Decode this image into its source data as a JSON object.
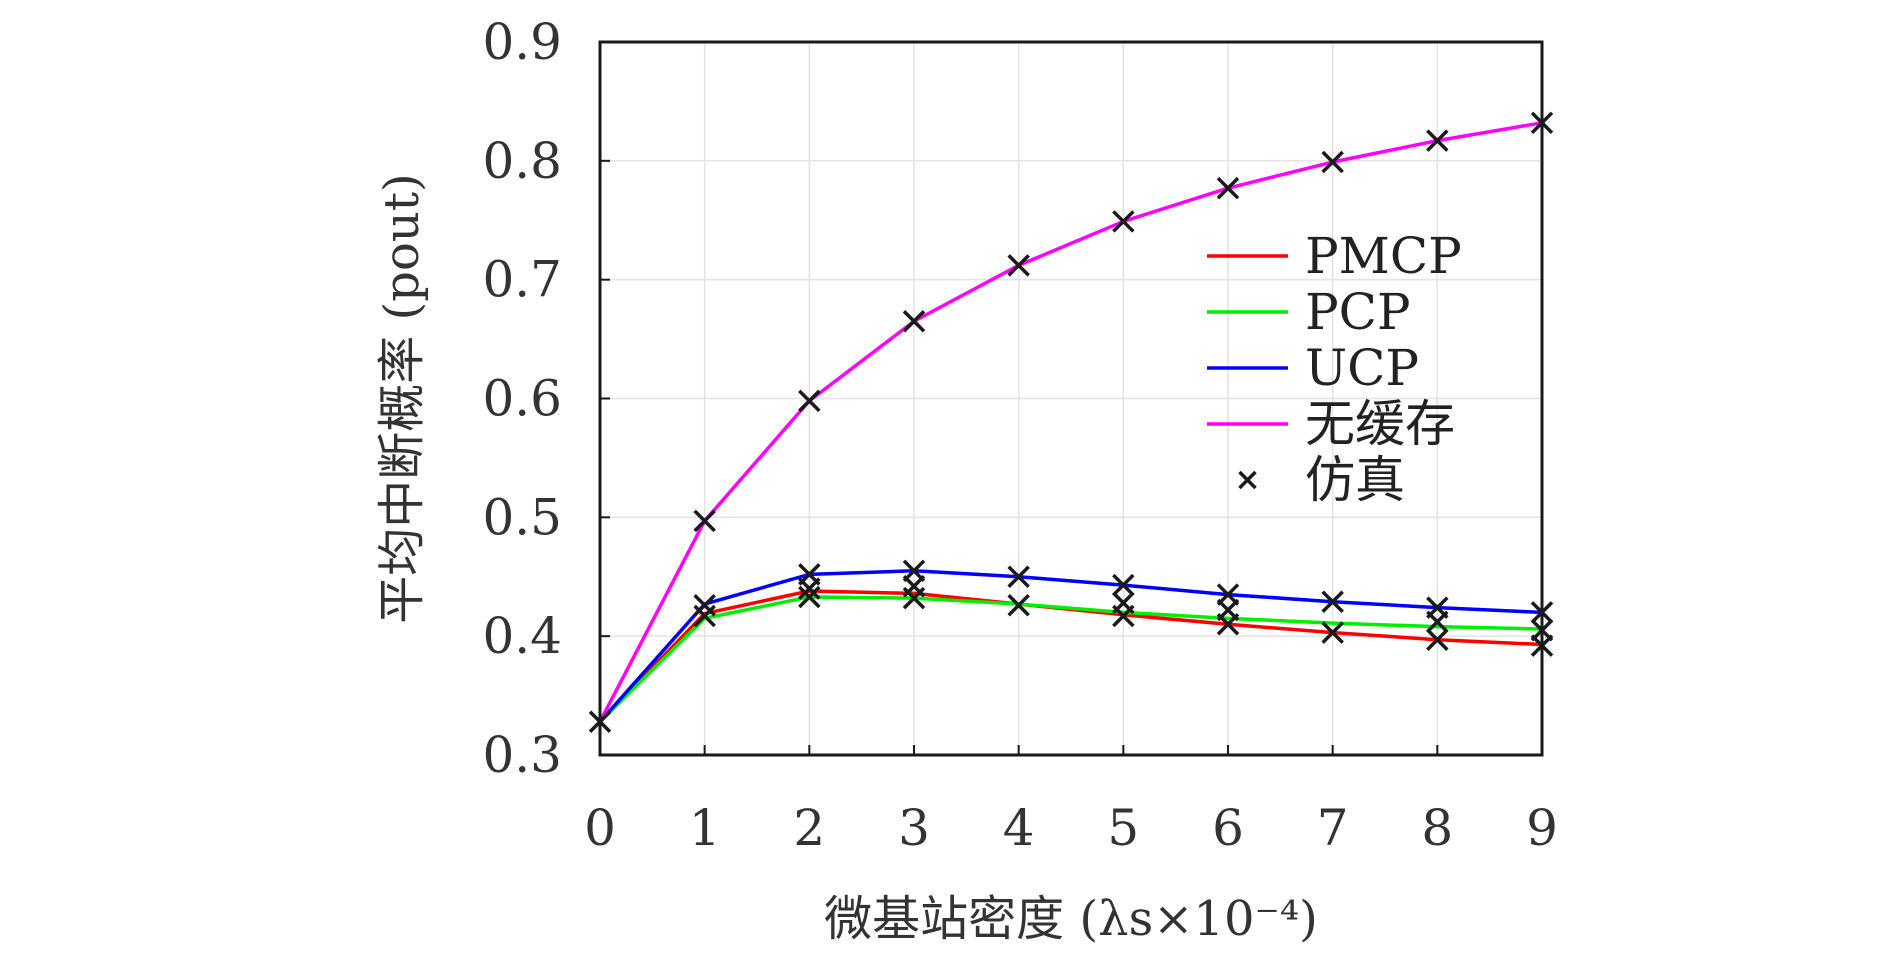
{
  "chart_data": {
    "type": "line",
    "xlabel": "微基站密度 (λs×10⁻⁴)",
    "ylabel": "平均中断概率 (pout)",
    "x": [
      0,
      1,
      2,
      3,
      4,
      5,
      6,
      7,
      8,
      9
    ],
    "xlim": [
      0,
      9
    ],
    "ylim": [
      0.3,
      0.9
    ],
    "xticks": [
      "0",
      "1",
      "2",
      "3",
      "4",
      "5",
      "6",
      "7",
      "8",
      "9"
    ],
    "yticks": [
      "0.3",
      "0.4",
      "0.5",
      "0.6",
      "0.7",
      "0.8",
      "0.9"
    ],
    "grid": true,
    "legend_position": "right",
    "series": [
      {
        "name": "PMCP",
        "color": "#ff0000",
        "values": [
          0.328,
          0.419,
          0.438,
          0.436,
          0.427,
          0.418,
          0.41,
          0.403,
          0.397,
          0.393
        ]
      },
      {
        "name": "PCP",
        "color": "#00ee00",
        "values": [
          0.328,
          0.415,
          0.433,
          0.432,
          0.427,
          0.42,
          0.415,
          0.411,
          0.408,
          0.406
        ]
      },
      {
        "name": "UCP",
        "color": "#0000ff",
        "values": [
          0.328,
          0.427,
          0.452,
          0.455,
          0.45,
          0.443,
          0.435,
          0.429,
          0.424,
          0.42
        ]
      },
      {
        "name": "无缓存",
        "color": "#ff00ff",
        "values": [
          0.328,
          0.497,
          0.598,
          0.665,
          0.712,
          0.749,
          0.777,
          0.799,
          0.817,
          0.832
        ]
      }
    ],
    "markers": {
      "name": "仿真",
      "color": "#1a1a1a",
      "points": [
        [
          0,
          0.328
        ],
        [
          1,
          0.417
        ],
        [
          1,
          0.426
        ],
        [
          1,
          0.497
        ],
        [
          2,
          0.433
        ],
        [
          2,
          0.44
        ],
        [
          2,
          0.452
        ],
        [
          2,
          0.598
        ],
        [
          3,
          0.432
        ],
        [
          3,
          0.442
        ],
        [
          3,
          0.455
        ],
        [
          3,
          0.665
        ],
        [
          4,
          0.426
        ],
        [
          4,
          0.45
        ],
        [
          4,
          0.712
        ],
        [
          5,
          0.417
        ],
        [
          5,
          0.428
        ],
        [
          5,
          0.443
        ],
        [
          5,
          0.749
        ],
        [
          6,
          0.41
        ],
        [
          6,
          0.422
        ],
        [
          6,
          0.435
        ],
        [
          6,
          0.777
        ],
        [
          7,
          0.403
        ],
        [
          7,
          0.429
        ],
        [
          7,
          0.799
        ],
        [
          8,
          0.397
        ],
        [
          8,
          0.412
        ],
        [
          8,
          0.424
        ],
        [
          8,
          0.817
        ],
        [
          9,
          0.392
        ],
        [
          9,
          0.405
        ],
        [
          9,
          0.42
        ],
        [
          9,
          0.832
        ]
      ]
    }
  }
}
